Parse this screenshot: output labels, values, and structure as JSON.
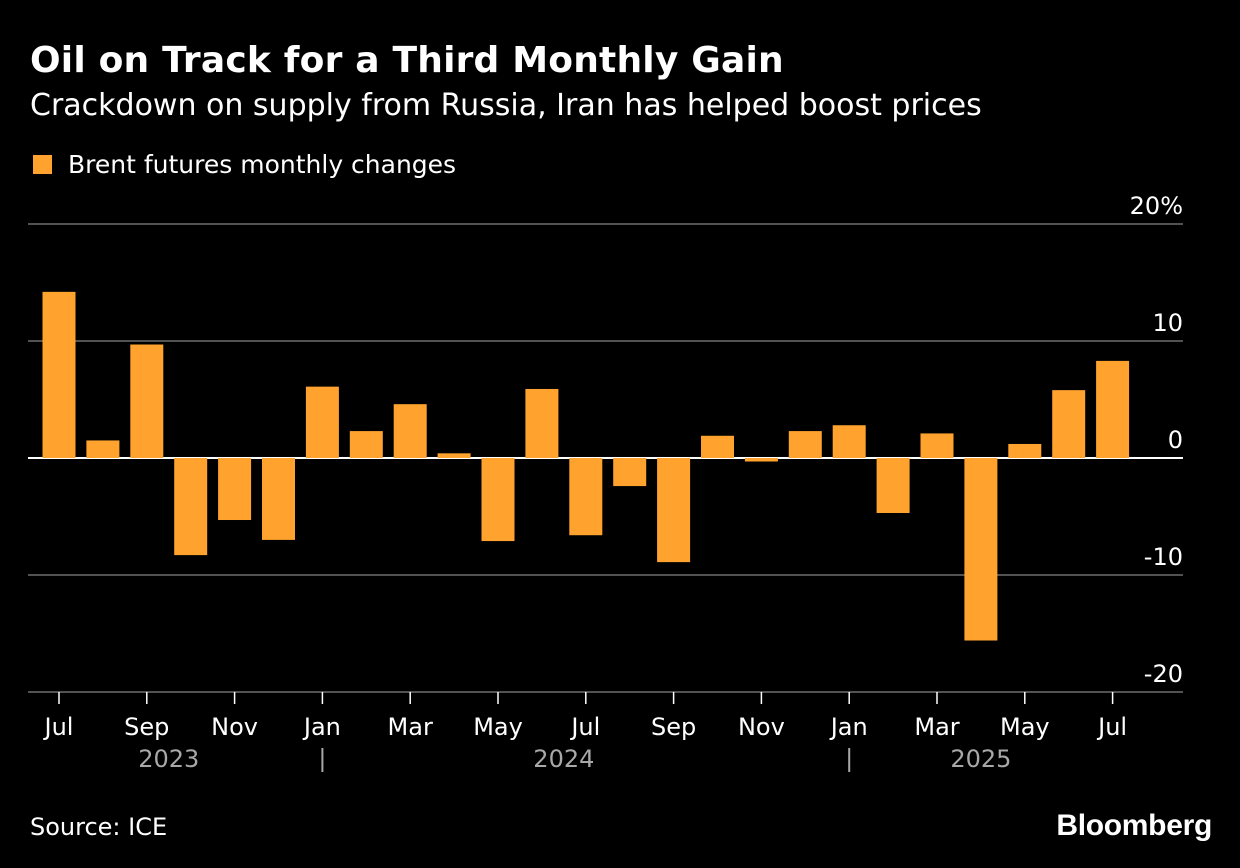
{
  "title": "Oil on Track for a Third Monthly Gain",
  "subtitle": "Crackdown on supply from Russia, Iran has helped boost prices",
  "legend": {
    "label": "Brent futures monthly changes",
    "color": "#ffa32e"
  },
  "source": "Source: ICE",
  "brand": "Bloomberg",
  "chart_data": {
    "type": "bar",
    "ylim": [
      -20,
      20
    ],
    "y_ticks": [
      {
        "value": 20,
        "label": "20%"
      },
      {
        "value": 10,
        "label": "10"
      },
      {
        "value": 0,
        "label": "0"
      },
      {
        "value": -10,
        "label": "-10"
      },
      {
        "value": -20,
        "label": "-20"
      }
    ],
    "categories": [
      "2023-07",
      "2023-08",
      "2023-09",
      "2023-10",
      "2023-11",
      "2023-12",
      "2024-01",
      "2024-02",
      "2024-03",
      "2024-04",
      "2024-05",
      "2024-06",
      "2024-07",
      "2024-08",
      "2024-09",
      "2024-10",
      "2024-11",
      "2024-12",
      "2025-01",
      "2025-02",
      "2025-03",
      "2025-04",
      "2025-05",
      "2025-06",
      "2025-07"
    ],
    "series": [
      {
        "name": "Brent futures monthly changes",
        "color": "#ffa32e",
        "values": [
          14.2,
          1.5,
          9.7,
          -8.3,
          -5.3,
          -7.0,
          6.1,
          2.3,
          4.6,
          0.4,
          -7.1,
          5.9,
          -6.6,
          -2.4,
          -8.9,
          1.9,
          -0.3,
          2.3,
          2.8,
          -4.7,
          2.1,
          -15.6,
          1.2,
          5.8,
          8.3
        ]
      }
    ],
    "x_tick_labels": [
      {
        "index": 0,
        "label": "Jul"
      },
      {
        "index": 2,
        "label": "Sep"
      },
      {
        "index": 4,
        "label": "Nov"
      },
      {
        "index": 6,
        "label": "Jan"
      },
      {
        "index": 8,
        "label": "Mar"
      },
      {
        "index": 10,
        "label": "May"
      },
      {
        "index": 12,
        "label": "Jul"
      },
      {
        "index": 14,
        "label": "Sep"
      },
      {
        "index": 16,
        "label": "Nov"
      },
      {
        "index": 18,
        "label": "Jan"
      },
      {
        "index": 20,
        "label": "Mar"
      },
      {
        "index": 22,
        "label": "May"
      },
      {
        "index": 24,
        "label": "Jul"
      }
    ],
    "year_labels": [
      {
        "label": "2023",
        "start_index": 0,
        "end_index": 5
      },
      {
        "label": "2024",
        "start_index": 6,
        "end_index": 17
      },
      {
        "label": "2025",
        "start_index": 18,
        "end_index": 24
      }
    ],
    "grid": true,
    "legend_position": "top-left"
  }
}
